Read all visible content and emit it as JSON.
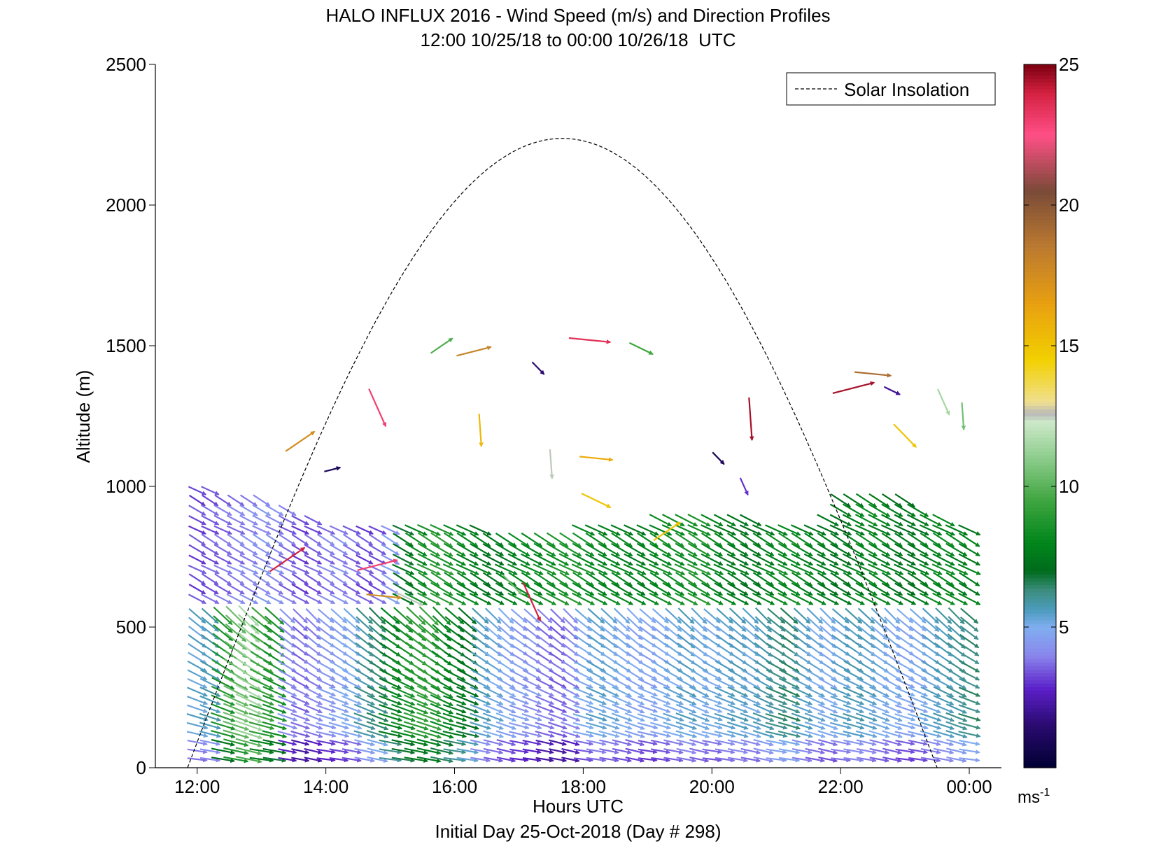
{
  "chart_data": {
    "type": "vector-field",
    "title": "HALO INFLUX 2016 - Wind Speed (m/s) and Direction Profiles",
    "subtitle": "12:00 10/25/18 to 00:00 10/26/18  UTC",
    "xlabel": "Hours UTC",
    "ylabel": "Altitude (m)",
    "footer": "Initial Day 25-Oct-2018 (Day # 298)",
    "x_ticks": [
      "12:00",
      "14:00",
      "16:00",
      "18:00",
      "20:00",
      "22:00",
      "00:00"
    ],
    "y_ticks": [
      "0",
      "500",
      "1000",
      "1500",
      "2000",
      "2500"
    ],
    "xlim": [
      11.35,
      24.5
    ],
    "ylim": [
      0,
      2500
    ],
    "legend": {
      "label": "Solar Insolation",
      "position": "top-right",
      "style": "dashed"
    },
    "colorbar": {
      "ticks": [
        "5",
        "10",
        "15",
        "20",
        "25"
      ],
      "range": [
        0,
        25
      ],
      "unit_base": "ms",
      "unit_exp": "-1",
      "stops": [
        {
          "v": 0,
          "c": "#000033"
        },
        {
          "v": 1.5,
          "c": "#2a0a6e"
        },
        {
          "v": 2.8,
          "c": "#5b1fc8"
        },
        {
          "v": 4.0,
          "c": "#8a86ec"
        },
        {
          "v": 5.0,
          "c": "#80aef0"
        },
        {
          "v": 5.6,
          "c": "#4d9cbf"
        },
        {
          "v": 6.3,
          "c": "#3d8e80"
        },
        {
          "v": 7.0,
          "c": "#006b1c"
        },
        {
          "v": 8.0,
          "c": "#00861b"
        },
        {
          "v": 9.5,
          "c": "#3fa53f"
        },
        {
          "v": 11.0,
          "c": "#8ccc8c"
        },
        {
          "v": 12.3,
          "c": "#cde8c8"
        },
        {
          "v": 12.6,
          "c": "#b8b8b8"
        },
        {
          "v": 13.0,
          "c": "#f0e090"
        },
        {
          "v": 14.5,
          "c": "#f2d000"
        },
        {
          "v": 16.5,
          "c": "#e8a010"
        },
        {
          "v": 18.5,
          "c": "#bc7a30"
        },
        {
          "v": 20.5,
          "c": "#7a4a38"
        },
        {
          "v": 22.5,
          "c": "#ff4f86"
        },
        {
          "v": 24.0,
          "c": "#d42040"
        },
        {
          "v": 25,
          "c": "#7a0010"
        }
      ]
    },
    "solar_insolation": {
      "sunrise_hour": 11.85,
      "sunset_hour": 23.5,
      "peak_altitude": 2237
    },
    "wind_vectors": {
      "time_hours": [
        12.0,
        12.2,
        12.4,
        12.6,
        12.8,
        13.0,
        13.2,
        13.4,
        13.6,
        13.8,
        14.0,
        14.2,
        14.4,
        14.6,
        14.8,
        15.0,
        15.2,
        15.4,
        15.6,
        15.8,
        16.0,
        16.2,
        16.4,
        16.6,
        16.8,
        17.0,
        17.2,
        17.4,
        17.6,
        17.8,
        18.0,
        18.2,
        18.4,
        18.6,
        18.8,
        19.0,
        19.2,
        19.4,
        19.6,
        19.8,
        20.0,
        20.2,
        20.4,
        20.6,
        20.8,
        21.0,
        21.2,
        21.4,
        21.6,
        21.8,
        22.0,
        22.2,
        22.4,
        22.6,
        22.8,
        23.0,
        23.2,
        23.4,
        23.6,
        23.8,
        24.0
      ],
      "altitude_levels_m": [
        30,
        60,
        90,
        120,
        150,
        180,
        210,
        240,
        270,
        300,
        330,
        360,
        390,
        420,
        450,
        480,
        510,
        540
      ],
      "speed_by_time_mps": [
        5.2,
        5.5,
        8.5,
        10.0,
        11.2,
        9.0,
        8.3,
        4.0,
        3.5,
        3.8,
        4.2,
        4.5,
        4.8,
        5.8,
        6.2,
        7.5,
        8.2,
        8.8,
        9.0,
        8.0,
        7.5,
        6.8,
        5.4,
        5.0,
        4.6,
        4.3,
        4.1,
        3.6,
        3.4,
        3.8,
        4.8,
        5.2,
        5.0,
        4.8,
        4.6,
        4.5,
        4.7,
        5.0,
        5.3,
        5.0,
        4.9,
        5.2,
        5.4,
        5.1,
        5.6,
        6.0,
        6.2,
        5.4,
        5.0,
        4.8,
        5.2,
        5.5,
        5.3,
        5.0,
        4.8,
        4.6,
        4.7,
        5.2,
        5.5,
        5.8,
        6.1
      ],
      "speed_top_layer_mps": [
        3.0,
        3.2,
        3.4,
        3.6,
        3.8,
        4.0,
        3.8,
        3.4,
        3.0,
        3.2,
        3.6,
        3.8,
        3.4,
        3.0,
        3.2,
        4.2,
        6.8,
        7.8,
        8.5,
        8.6,
        8.0,
        7.6,
        7.2,
        7.0,
        7.4,
        7.8,
        7.6,
        8.0,
        8.2,
        8.4,
        8.0,
        7.6,
        7.8,
        7.6,
        7.4,
        7.6,
        7.8,
        8.0,
        8.2,
        8.4,
        7.6,
        7.4,
        7.2,
        7.0,
        7.4,
        7.8,
        8.0,
        7.6,
        7.4,
        7.2,
        7.0,
        7.4,
        7.8,
        7.6,
        7.2,
        7.0,
        7.2,
        7.6,
        7.8,
        7.6,
        7.4
      ],
      "upper_layer_top_m": [
        1000,
        990,
        980,
        970,
        960,
        950,
        940,
        930,
        900,
        880,
        860,
        860,
        850,
        850,
        850,
        850,
        850,
        860,
        860,
        860,
        850,
        850,
        850,
        820,
        820,
        820,
        820,
        820,
        820,
        820,
        850,
        860,
        860,
        860,
        870,
        870,
        880,
        880,
        880,
        880,
        880,
        880,
        880,
        880,
        870,
        860,
        860,
        860,
        860,
        900,
        950,
        960,
        960,
        960,
        960,
        950,
        940,
        900,
        880,
        870,
        860
      ],
      "direction_note": "vectors drawn with arrowheads at the right/lower end; mean flow from the north-west",
      "scattered_vectors": [
        {
          "t": 15.8,
          "z": 1500,
          "s": 9.8
        },
        {
          "t": 16.3,
          "z": 1480,
          "s": 18.0
        },
        {
          "t": 18.1,
          "z": 1520,
          "s": 23.5
        },
        {
          "t": 18.9,
          "z": 1490,
          "s": 9.5
        },
        {
          "t": 17.3,
          "z": 1420,
          "s": 1.5
        },
        {
          "t": 14.8,
          "z": 1280,
          "s": 23.0
        },
        {
          "t": 16.4,
          "z": 1200,
          "s": 15.5
        },
        {
          "t": 13.6,
          "z": 1160,
          "s": 17.5
        },
        {
          "t": 14.1,
          "z": 1060,
          "s": 1.0
        },
        {
          "t": 18.2,
          "z": 1100,
          "s": 16.0
        },
        {
          "t": 18.2,
          "z": 950,
          "s": 15.0
        },
        {
          "t": 20.1,
          "z": 1100,
          "s": 1.0
        },
        {
          "t": 20.5,
          "z": 1000,
          "s": 3.0
        },
        {
          "t": 20.6,
          "z": 1240,
          "s": 24.5
        },
        {
          "t": 13.4,
          "z": 740,
          "s": 24.0
        },
        {
          "t": 14.8,
          "z": 720,
          "s": 23.0
        },
        {
          "t": 14.9,
          "z": 610,
          "s": 17.5
        },
        {
          "t": 15.3,
          "z": 600,
          "s": 12.5
        },
        {
          "t": 16.9,
          "z": 650,
          "s": 10.5
        },
        {
          "t": 17.2,
          "z": 590,
          "s": 24.0
        },
        {
          "t": 17.5,
          "z": 1080,
          "s": 12.5
        },
        {
          "t": 19.3,
          "z": 840,
          "s": 15.0
        },
        {
          "t": 22.2,
          "z": 1350,
          "s": 24.5
        },
        {
          "t": 22.5,
          "z": 1400,
          "s": 19.0
        },
        {
          "t": 22.8,
          "z": 1340,
          "s": 2.0
        },
        {
          "t": 23.0,
          "z": 1180,
          "s": 15.0
        },
        {
          "t": 23.6,
          "z": 1300,
          "s": 11.5
        },
        {
          "t": 23.9,
          "z": 1250,
          "s": 10.5
        }
      ]
    }
  }
}
